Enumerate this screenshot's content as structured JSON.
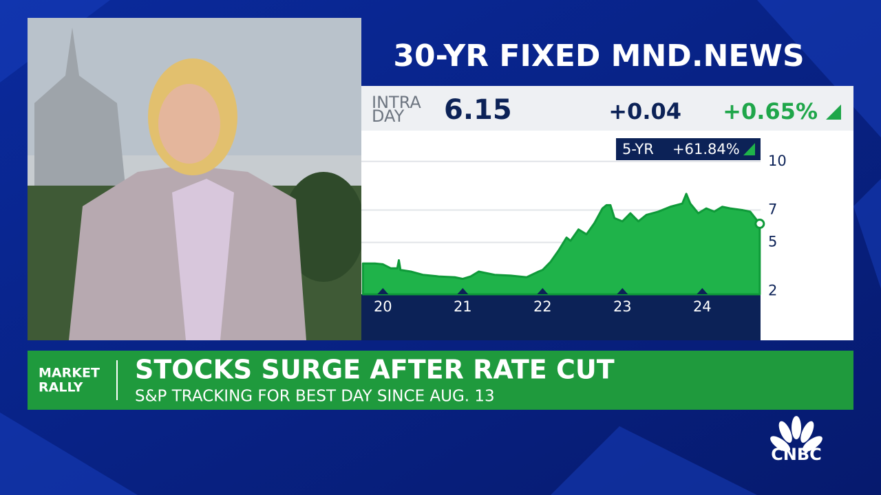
{
  "chart_data": {
    "type": "area",
    "title": "30-YR FIXED MND.NEWS",
    "quote_label": [
      "INTRA",
      "DAY"
    ],
    "last": 6.15,
    "change": {
      "value": 0.04,
      "label": "+0.04"
    },
    "change_pct": {
      "value": 0.65,
      "label": "+0.65%"
    },
    "period": "5-YR",
    "period_change": {
      "value": 61.84,
      "label": "+61.84%"
    },
    "color": "#1fb34a",
    "line_color": "#0f9a39",
    "x": [
      19.75,
      19.9,
      20.0,
      20.1,
      20.18,
      20.2,
      20.22,
      20.35,
      20.5,
      20.7,
      20.9,
      21.0,
      21.1,
      21.2,
      21.4,
      21.6,
      21.8,
      21.95,
      22.0,
      22.1,
      22.2,
      22.3,
      22.35,
      22.45,
      22.55,
      22.65,
      22.75,
      22.8,
      22.85,
      22.9,
      23.0,
      23.1,
      23.2,
      23.3,
      23.45,
      23.6,
      23.75,
      23.8,
      23.85,
      23.95,
      24.05,
      24.15,
      24.25,
      24.35,
      24.5,
      24.6,
      24.72
    ],
    "values": [
      3.7,
      3.7,
      3.65,
      3.4,
      3.4,
      3.9,
      3.3,
      3.2,
      3.0,
      2.9,
      2.85,
      2.75,
      2.9,
      3.2,
      3.0,
      2.95,
      2.85,
      3.2,
      3.3,
      3.8,
      4.5,
      5.3,
      5.1,
      5.8,
      5.5,
      6.2,
      7.1,
      7.3,
      7.3,
      6.5,
      6.3,
      6.8,
      6.3,
      6.7,
      6.9,
      7.2,
      7.4,
      8.0,
      7.4,
      6.8,
      7.1,
      6.9,
      7.2,
      7.1,
      7.0,
      6.9,
      6.15
    ],
    "xlim": [
      19.73,
      24.73
    ],
    "xticks": [
      20,
      21,
      22,
      23,
      24
    ],
    "ylim": [
      1.8,
      11.9
    ],
    "yticks": [
      10,
      7,
      5,
      2
    ],
    "grid": true
  },
  "banner": {
    "tag": [
      "MARKET",
      "RALLY"
    ],
    "headline": "STOCKS SURGE AFTER RATE CUT",
    "subhead": "S&P TRACKING FOR BEST DAY SINCE AUG. 13"
  },
  "logo": "CNBC"
}
